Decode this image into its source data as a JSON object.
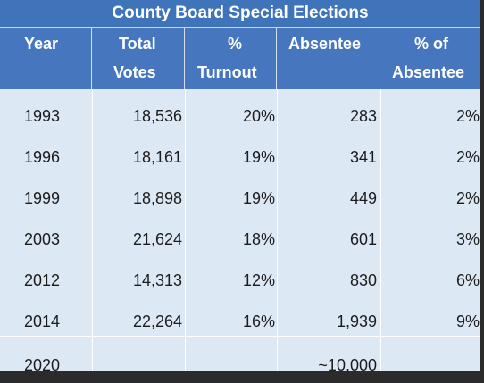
{
  "table": {
    "title": "County Board Special Elections",
    "headers": [
      {
        "line1": "Year",
        "line2": ""
      },
      {
        "line1": "Total",
        "line2": "Votes"
      },
      {
        "line1": "%",
        "line2": "Turnout"
      },
      {
        "line1": "Absentee",
        "line2": ""
      },
      {
        "line1": "% of",
        "line2": "Absentee"
      }
    ],
    "rows": [
      {
        "year": "1993",
        "total_votes": "18,536",
        "turnout": "20%",
        "absentee": "283",
        "pct_absentee": "2%"
      },
      {
        "year": "1996",
        "total_votes": "18,161",
        "turnout": "19%",
        "absentee": "341",
        "pct_absentee": "2%"
      },
      {
        "year": "1999",
        "total_votes": "18,898",
        "turnout": "19%",
        "absentee": "449",
        "pct_absentee": "2%"
      },
      {
        "year": "2003",
        "total_votes": "21,624",
        "turnout": "18%",
        "absentee": "601",
        "pct_absentee": "3%"
      },
      {
        "year": "2012",
        "total_votes": "14,313",
        "turnout": "12%",
        "absentee": "830",
        "pct_absentee": "6%"
      },
      {
        "year": "2014",
        "total_votes": "22,264",
        "turnout": "16%",
        "absentee": "1,939",
        "pct_absentee": "9%"
      },
      {
        "year": "2020",
        "total_votes": "",
        "turnout": "",
        "absentee": "~10,000",
        "pct_absentee": ""
      }
    ]
  },
  "colors": {
    "header_blue": "#4677be",
    "title_blue": "#3f74ba",
    "body_bg": "#dde8f5",
    "text": "#1c1c1c"
  }
}
